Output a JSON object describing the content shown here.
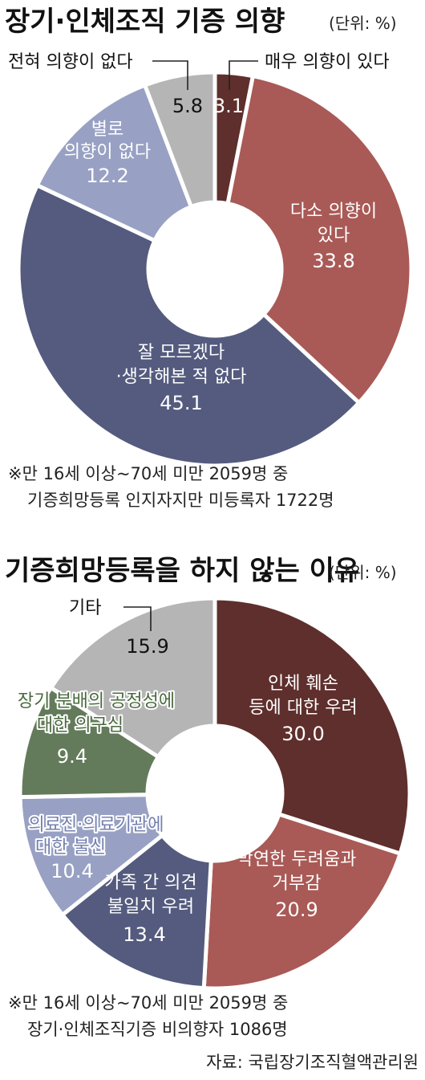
{
  "chart_data": [
    {
      "type": "pie",
      "title": "장기·인체조직 기증 의향",
      "unit_label": "(단위: %)",
      "slices": [
        {
          "label": "매우 의향이 있다",
          "value": 3.1,
          "value_label": "3.1",
          "color": "#5e2f2c"
        },
        {
          "label": "다소 의향이 있다",
          "value": 33.8,
          "value_label": "33.8",
          "color": "#a95a56"
        },
        {
          "label": "잘 모르겠다 ·생각해본 적 없다",
          "value": 45.1,
          "value_label": "45.1",
          "color": "#545b7e"
        },
        {
          "label": "별로 의향이 없다",
          "value": 12.2,
          "value_label": "12.2",
          "color": "#98a1c3"
        },
        {
          "label": "전혀 의향이 없다",
          "value": 5.8,
          "value_label": "5.8",
          "color": "#b5b5b5"
        }
      ],
      "notes": [
        "※만 16세 이상~70세 미만 2059명 중",
        "기증희망등록 인지자지만 미등록자 1722명"
      ]
    },
    {
      "type": "pie",
      "title": "기증희망등록을 하지 않는 이유",
      "unit_label": "(단위: %)",
      "slices": [
        {
          "label": "인체 훼손 등에 대한 우려",
          "value": 30.0,
          "value_label": "30.0",
          "color": "#5e2f2c"
        },
        {
          "label": "막연한 두려움과 거부감",
          "value": 20.9,
          "value_label": "20.9",
          "color": "#a95a56"
        },
        {
          "label": "가족 간 의견 불일치 우려",
          "value": 13.4,
          "value_label": "13.4",
          "color": "#545b7e"
        },
        {
          "label": "의료진·의료기관에 대한 불신",
          "value": 10.4,
          "value_label": "10.4",
          "color": "#98a1c3"
        },
        {
          "label": "장기 분배의 공정성에 대한 의구심",
          "value": 9.4,
          "value_label": "9.4",
          "color": "#637b5b"
        },
        {
          "label": "기타",
          "value": 15.9,
          "value_label": "15.9",
          "color": "#b5b5b5"
        }
      ],
      "notes": [
        "※만 16세 이상~70세 미만 2059명 중",
        "장기·인체조직기증 비의향자 1086명"
      ]
    }
  ],
  "source": "자료:   국립장기조직혈액관리원"
}
